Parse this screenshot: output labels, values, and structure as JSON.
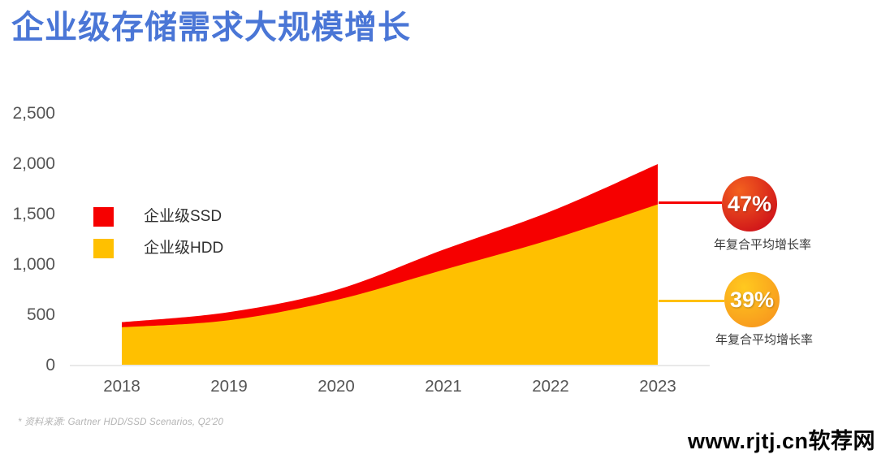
{
  "page": {
    "title": "企业级存储需求大规模增长",
    "footer_note": "* 资料来源: Gartner HDD/SSD Scenarios, Q2'20",
    "watermark": "www.rjtj.cn软荐网"
  },
  "colors": {
    "title": "#4A76D6",
    "ssd_red": "#F60000",
    "hdd_yellow": "#FFC000",
    "axis_line": "#E9E9E9",
    "tick_text": "#555555",
    "badge_red_from": "#F3611F",
    "badge_red_to": "#CE1019",
    "badge_yellow_from": "#FFC91F",
    "badge_yellow_to": "#F7941D"
  },
  "legend": [
    {
      "label": "企业级SSD",
      "color": "#F60000"
    },
    {
      "label": "企业级HDD",
      "color": "#FFC000"
    }
  ],
  "badges": [
    {
      "value": "47%",
      "caption": "年复合平均增长率",
      "theme": "red"
    },
    {
      "value": "39%",
      "caption": "年复合平均增长率",
      "theme": "yellow"
    }
  ],
  "chart_data": {
    "type": "area",
    "stacked": true,
    "categories": [
      "2018",
      "2019",
      "2020",
      "2021",
      "2022",
      "2023"
    ],
    "series": [
      {
        "name": "企业级HDD",
        "color": "#FFC000",
        "values": [
          380,
          450,
          650,
          950,
          1250,
          1600
        ]
      },
      {
        "name": "企业级SSD",
        "color": "#F60000",
        "values": [
          50,
          80,
          100,
          200,
          280,
          400
        ]
      }
    ],
    "stacked_totals": [
      430,
      530,
      750,
      1150,
      1530,
      2000
    ],
    "title": "企业级存储需求大规模增长",
    "xlabel": "",
    "ylabel": "",
    "ylim": [
      0,
      2500
    ],
    "yticks": [
      0,
      500,
      1000,
      1500,
      2000,
      2500
    ],
    "grid": false,
    "legend_position": "inside-left"
  }
}
